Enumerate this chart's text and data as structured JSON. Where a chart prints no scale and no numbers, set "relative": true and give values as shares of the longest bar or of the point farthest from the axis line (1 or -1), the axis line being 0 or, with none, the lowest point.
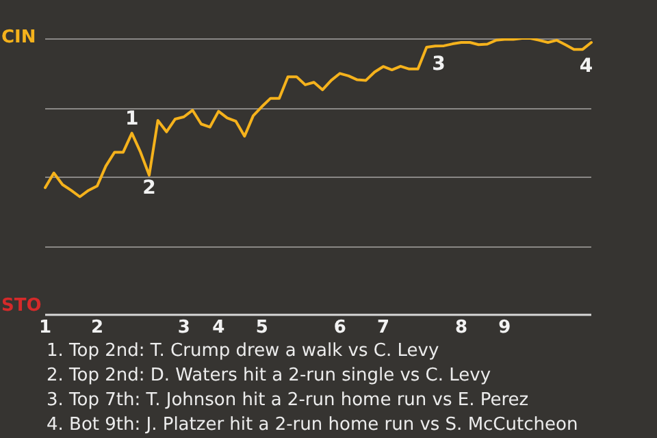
{
  "chart_data": {
    "type": "line",
    "relative": true,
    "categories": [
      "1",
      null,
      null,
      null,
      null,
      null,
      "2",
      null,
      null,
      null,
      null,
      null,
      null,
      null,
      null,
      null,
      "3",
      null,
      null,
      null,
      "4",
      null,
      null,
      null,
      null,
      "5",
      null,
      null,
      null,
      null,
      null,
      null,
      null,
      null,
      "6",
      null,
      null,
      null,
      null,
      "7",
      null,
      null,
      null,
      null,
      null,
      null,
      null,
      null,
      "8",
      null,
      null,
      null,
      null,
      "9",
      null,
      null,
      null,
      null,
      null,
      null,
      null,
      null,
      null,
      null
    ],
    "grid": "y",
    "legend": false,
    "marker": "none",
    "line_style": "solid",
    "series": [
      {
        "color": "#f5b21c",
        "values": [
          0.46,
          0.513,
          0.471,
          0.45,
          0.427,
          0.45,
          0.466,
          0.538,
          0.588,
          0.588,
          0.657,
          0.588,
          0.505,
          0.703,
          0.662,
          0.708,
          0.716,
          0.74,
          0.69,
          0.679,
          0.736,
          0.712,
          0.7,
          0.646,
          0.72,
          0.753,
          0.783,
          0.783,
          0.861,
          0.861,
          0.832,
          0.841,
          0.814,
          0.848,
          0.873,
          0.864,
          0.85,
          0.848,
          0.878,
          0.898,
          0.886,
          0.899,
          0.889,
          0.889,
          0.968,
          0.972,
          0.973,
          0.98,
          0.985,
          0.985,
          0.977,
          0.979,
          0.993,
          0.996,
          0.996,
          1,
          1,
          0.993,
          0.985,
          0.993,
          0.977,
          0.96,
          0.96,
          0.985
        ]
      }
    ],
    "annotations": [
      "CIN",
      "STO",
      {
        "text": "1",
        "y": 0.657
      },
      {
        "text": "2",
        "y": 0.505
      },
      {
        "text": "3",
        "y": 0.968
      },
      {
        "text": "4",
        "y": 0.96
      },
      "1. Top 2nd: T. Crump drew a walk vs C. Levy",
      "2. Top 2nd: D. Waters hit a 2-run single vs C. Levy",
      "3. Top 7th: T. Johnson hit a 2-run home run vs E. Perez",
      "4. Bot 9th: J. Platzer hit a 2-run home run vs S. McCutcheon"
    ]
  }
}
